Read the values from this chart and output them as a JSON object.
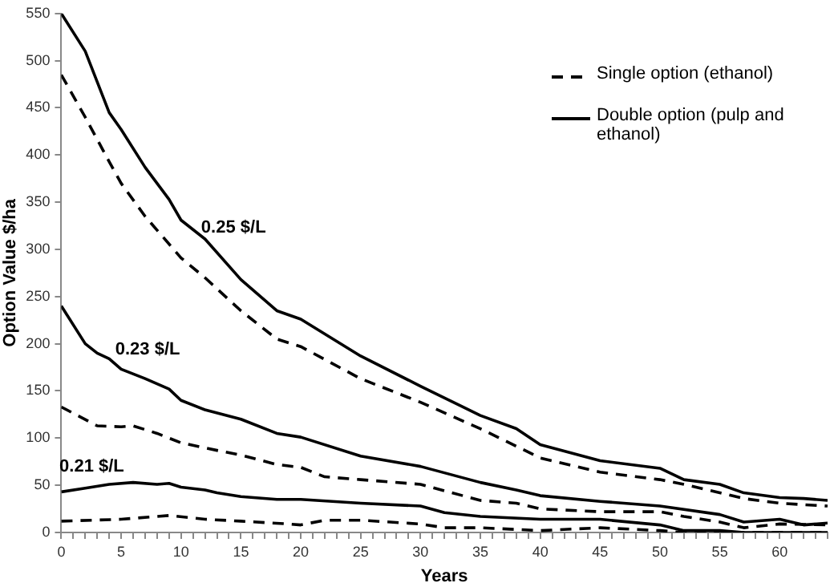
{
  "chart_data": {
    "type": "line",
    "xlabel": "Years",
    "ylabel": "Option Value $/ha",
    "xlim": [
      0,
      64
    ],
    "xticks": [
      0,
      {
        "value": 1,
        "label": null
      },
      {
        "value": 2,
        "label": null
      },
      {
        "value": 3,
        "label": null
      },
      {
        "value": 4,
        "label": null
      },
      5,
      {
        "value": 6,
        "label": null
      },
      {
        "value": 7,
        "label": null
      },
      {
        "value": 8,
        "label": null
      },
      {
        "value": 9,
        "label": null
      },
      10,
      {
        "value": 11,
        "label": null
      },
      {
        "value": 12,
        "label": null
      },
      {
        "value": 13,
        "label": null
      },
      {
        "value": 14,
        "label": null
      },
      15,
      {
        "value": 16,
        "label": null
      },
      {
        "value": 17,
        "label": null
      },
      {
        "value": 18,
        "label": null
      },
      {
        "value": 19,
        "label": null
      },
      20,
      {
        "value": 21,
        "label": null
      },
      {
        "value": 22,
        "label": null
      },
      {
        "value": 23,
        "label": null
      },
      {
        "value": 24,
        "label": null
      },
      25,
      {
        "value": 26,
        "label": null
      },
      {
        "value": 27,
        "label": null
      },
      {
        "value": 28,
        "label": null
      },
      {
        "value": 29,
        "label": null
      },
      30,
      {
        "value": 31,
        "label": null
      },
      {
        "value": 32,
        "label": null
      },
      {
        "value": 33,
        "label": null
      },
      {
        "value": 34,
        "label": null
      },
      35,
      {
        "value": 36,
        "label": null
      },
      {
        "value": 37,
        "label": null
      },
      {
        "value": 38,
        "label": null
      },
      {
        "value": 39,
        "label": null
      },
      40,
      {
        "value": 41,
        "label": null
      },
      {
        "value": 42,
        "label": null
      },
      {
        "value": 43,
        "label": null
      },
      {
        "value": 44,
        "label": null
      },
      45,
      {
        "value": 46,
        "label": null
      },
      {
        "value": 47,
        "label": null
      },
      {
        "value": 48,
        "label": null
      },
      {
        "value": 49,
        "label": null
      },
      50,
      {
        "value": 51,
        "label": null
      },
      {
        "value": 52,
        "label": null
      },
      {
        "value": 53,
        "label": null
      },
      {
        "value": 54,
        "label": null
      },
      55,
      {
        "value": 56,
        "label": null
      },
      {
        "value": 57,
        "label": null
      },
      {
        "value": 58,
        "label": null
      },
      {
        "value": 59,
        "label": null
      },
      60,
      {
        "value": 61,
        "label": null
      },
      {
        "value": 62,
        "label": null
      },
      {
        "value": 63,
        "label": null
      },
      {
        "value": 64,
        "label": null
      }
    ],
    "ylim": [
      0,
      550
    ],
    "yticks": [
      0,
      50,
      100,
      150,
      200,
      250,
      300,
      350,
      400,
      450,
      500,
      550
    ],
    "grid": false,
    "legend": "top right",
    "marker": "none",
    "annotations": [
      "0.25 $/L",
      "0.23 $/L",
      "0.21 $/L"
    ],
    "series": [
      {
        "name": "Single option (ethanol)",
        "color": "#000000",
        "line_style": "dashed",
        "x": [
          0,
          2,
          4,
          5,
          7,
          10,
          12,
          15,
          18,
          20,
          25,
          30,
          35,
          40,
          45,
          50,
          52,
          55,
          57,
          60,
          64
        ],
        "values": [
          485,
          440,
          393,
          370,
          335,
          291,
          270,
          235,
          205,
          197,
          163,
          138,
          110,
          79,
          64,
          56,
          51,
          42,
          36,
          31,
          28
        ]
      },
      {
        "name": "Double option (pulp and ethanol)",
        "color": "#000000",
        "line_style": "solid",
        "x": [
          0,
          2,
          4,
          5,
          7,
          9,
          10,
          12,
          15,
          18,
          20,
          25,
          30,
          35,
          38,
          40,
          45,
          50,
          52,
          55,
          57,
          60,
          62,
          64
        ],
        "values": [
          550,
          510,
          445,
          427,
          387,
          353,
          331,
          311,
          268,
          235,
          226,
          187,
          155,
          124,
          110,
          93,
          76,
          68,
          56,
          51,
          42,
          37,
          36,
          34
        ]
      },
      {
        "color": "#000000",
        "line_style": "dashed",
        "x": [
          0,
          3,
          5,
          6,
          8,
          10,
          13,
          15,
          18,
          20,
          22,
          25,
          30,
          35,
          38,
          40,
          45,
          50,
          52,
          55,
          57,
          60,
          64
        ],
        "values": [
          133,
          113,
          112,
          113,
          105,
          95,
          87,
          82,
          72,
          69,
          59,
          56,
          51,
          34,
          31,
          25,
          22,
          22,
          17,
          11,
          5,
          9,
          8
        ]
      },
      {
        "color": "#000000",
        "line_style": "solid",
        "x": [
          0,
          2,
          3,
          4,
          5,
          7,
          9,
          10,
          12,
          15,
          18,
          20,
          25,
          30,
          35,
          38,
          40,
          45,
          50,
          55,
          57,
          60,
          62,
          64
        ],
        "values": [
          240,
          200,
          190,
          184,
          173,
          163,
          152,
          140,
          130,
          120,
          105,
          101,
          81,
          70,
          53,
          45,
          39,
          33,
          28,
          19,
          11,
          14,
          8,
          10
        ]
      },
      {
        "color": "#000000",
        "line_style": "dashed",
        "x": [
          0,
          5,
          9,
          12,
          15,
          19,
          20,
          22,
          25,
          30,
          32,
          35,
          40,
          45,
          50,
          52,
          55,
          60,
          64
        ],
        "values": [
          12,
          14,
          18,
          14,
          12,
          9,
          8,
          13,
          13,
          9,
          5,
          5,
          2,
          5,
          2,
          0,
          0,
          0,
          0
        ]
      },
      {
        "color": "#000000",
        "line_style": "solid",
        "x": [
          0,
          2,
          4,
          6,
          8,
          9,
          10,
          12,
          13,
          15,
          18,
          20,
          25,
          30,
          32,
          35,
          40,
          45,
          50,
          52,
          55,
          57,
          60,
          64
        ],
        "values": [
          43,
          47,
          51,
          53,
          51,
          52,
          48,
          45,
          42,
          38,
          35,
          35,
          31,
          28,
          21,
          17,
          14,
          14,
          8,
          2,
          2,
          0,
          0,
          0
        ]
      }
    ]
  }
}
